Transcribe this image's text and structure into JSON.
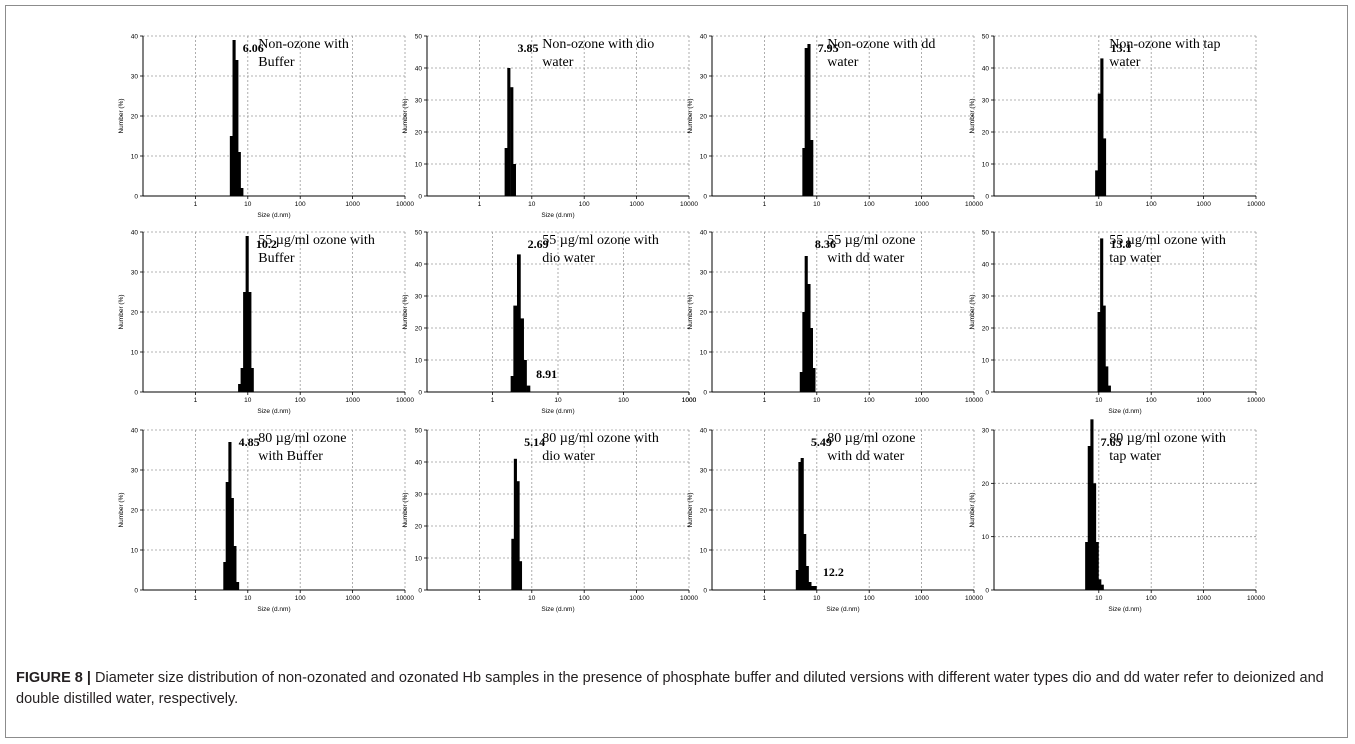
{
  "caption": {
    "label": "FIGURE 8 |",
    "text": " Diameter size distribution of non-ozonated and ozonated Hb samples in the presence of phosphate buffer and diluted versions with different water types dio and dd water refer to deionized and double distilled water, respectively."
  },
  "chart_data": [
    {
      "type": "bar",
      "title": [
        "Non-ozone with",
        "Buffer"
      ],
      "peak_label": "6.06",
      "secondary_label": "",
      "ylabel": "Number (%)",
      "xlabel": "Size (d.nm)",
      "x_scale": "log",
      "xlim": [
        0.1,
        10000
      ],
      "ylim": [
        0,
        40
      ],
      "yticks": [
        0,
        10,
        20,
        30,
        40
      ],
      "xticks": [
        "1",
        "10",
        "100",
        "1000",
        "10000"
      ],
      "grid": true,
      "bins": [
        [
          4.8,
          15
        ],
        [
          5.4,
          39
        ],
        [
          6.1,
          34
        ],
        [
          6.8,
          11
        ],
        [
          7.6,
          2
        ]
      ]
    },
    {
      "type": "bar",
      "title": [
        "Non-ozone with dio",
        "water"
      ],
      "peak_label": "3.85",
      "secondary_label": "",
      "ylabel": "Number (%)",
      "xlabel": "Size (d.nm)",
      "x_scale": "log",
      "xlim": [
        0.1,
        10000
      ],
      "ylim": [
        0,
        50
      ],
      "yticks": [
        0,
        10,
        20,
        30,
        40,
        50
      ],
      "xticks": [
        "1",
        "10",
        "100",
        "1000",
        "10000"
      ],
      "grid": true,
      "bins": [
        [
          3.2,
          15
        ],
        [
          3.6,
          40
        ],
        [
          4.1,
          34
        ],
        [
          4.6,
          10
        ]
      ]
    },
    {
      "type": "bar",
      "title": [
        "Non-ozone with dd",
        "water"
      ],
      "peak_label": "7.95",
      "secondary_label": "",
      "ylabel": "Number (%)",
      "xlabel": "",
      "x_scale": "log",
      "xlim": [
        0.1,
        10000
      ],
      "ylim": [
        0,
        40
      ],
      "yticks": [
        0,
        10,
        20,
        30,
        40
      ],
      "xticks": [
        "1",
        "10",
        "100",
        "1000",
        "10000"
      ],
      "grid": true,
      "bins": [
        [
          5.6,
          12
        ],
        [
          6.2,
          37
        ],
        [
          7.0,
          38
        ],
        [
          7.9,
          14
        ]
      ]
    },
    {
      "type": "bar",
      "title": [
        "Non-ozone with tap",
        "water"
      ],
      "peak_label": "13.1",
      "secondary_label": "",
      "ylabel": "Number (%)",
      "xlabel": "",
      "x_scale": "log",
      "xlim": [
        0.1,
        10000
      ],
      "ylim": [
        0,
        50
      ],
      "yticks": [
        0,
        10,
        20,
        30,
        40,
        50
      ],
      "xticks": [
        "10",
        "100",
        "1000",
        "10000"
      ],
      "grid": true,
      "bins": [
        [
          9.0,
          8
        ],
        [
          10.1,
          32
        ],
        [
          11.3,
          43
        ],
        [
          12.7,
          18
        ]
      ]
    },
    {
      "type": "bar",
      "title": [
        "55 µg/ml ozone with",
        "Buffer"
      ],
      "peak_label": "10.2",
      "secondary_label": "",
      "ylabel": "Number (%)",
      "xlabel": "Size (d.nm)",
      "x_scale": "log",
      "xlim": [
        0.1,
        10000
      ],
      "ylim": [
        0,
        40
      ],
      "yticks": [
        0,
        10,
        20,
        30,
        40
      ],
      "xticks": [
        "1",
        "10",
        "100",
        "1000",
        "10000"
      ],
      "grid": true,
      "bins": [
        [
          6.9,
          2
        ],
        [
          7.7,
          6
        ],
        [
          8.6,
          25
        ],
        [
          9.6,
          39
        ],
        [
          10.8,
          25
        ],
        [
          12.0,
          6
        ]
      ]
    },
    {
      "type": "bar",
      "title": [
        "55 µg/ml ozone with",
        "dio water"
      ],
      "peak_label": "2.69",
      "secondary_label": "8.91",
      "ylabel": "Number (%)",
      "xlabel": "Size (d.nm)",
      "x_scale": "log",
      "xlim": [
        0.1,
        1000
      ],
      "ylim": [
        0,
        50
      ],
      "yticks": [
        0,
        10,
        20,
        30,
        40,
        50
      ],
      "xticks": [
        "1",
        "10",
        "100",
        "1000",
        "1000"
      ],
      "grid": true,
      "bins": [
        [
          2.0,
          5
        ],
        [
          2.2,
          27
        ],
        [
          2.5,
          43
        ],
        [
          2.8,
          23
        ],
        [
          3.1,
          10
        ],
        [
          3.5,
          2
        ]
      ]
    },
    {
      "type": "bar",
      "title": [
        "55 µg/ml ozone",
        "with dd water"
      ],
      "peak_label": "8.36",
      "secondary_label": "",
      "ylabel": "Number (%)",
      "xlabel": "",
      "x_scale": "log",
      "xlim": [
        0.1,
        10000
      ],
      "ylim": [
        0,
        40
      ],
      "yticks": [
        0,
        10,
        20,
        30,
        40
      ],
      "xticks": [
        "1",
        "10",
        "100",
        "1000",
        "10000"
      ],
      "grid": true,
      "bins": [
        [
          5.0,
          5
        ],
        [
          5.6,
          20
        ],
        [
          6.2,
          34
        ],
        [
          7.0,
          27
        ],
        [
          7.8,
          16
        ],
        [
          8.7,
          6
        ]
      ]
    },
    {
      "type": "bar",
      "title": [
        "55 µg/ml ozone with",
        "tap water"
      ],
      "peak_label": "13.8",
      "secondary_label": "",
      "ylabel": "Number (%)",
      "xlabel": "Size (d.nm)",
      "x_scale": "log",
      "xlim": [
        0.1,
        10000
      ],
      "ylim": [
        0,
        50
      ],
      "yticks": [
        0,
        10,
        20,
        30,
        40,
        50
      ],
      "xticks": [
        "10",
        "100",
        "1000",
        "10000"
      ],
      "grid": true,
      "bins": [
        [
          10.0,
          25
        ],
        [
          11.2,
          48
        ],
        [
          12.5,
          27
        ],
        [
          14.0,
          8
        ],
        [
          15.7,
          2
        ]
      ]
    },
    {
      "type": "bar",
      "title": [
        "80 µg/ml ozone",
        "with Buffer"
      ],
      "peak_label": "4.85",
      "secondary_label": "",
      "ylabel": "Number (%)",
      "xlabel": "Size (d.nm)",
      "x_scale": "log",
      "xlim": [
        0.1,
        10000
      ],
      "ylim": [
        0,
        40
      ],
      "yticks": [
        0,
        10,
        20,
        30,
        40
      ],
      "xticks": [
        "1",
        "10",
        "100",
        "1000",
        "10000"
      ],
      "grid": true,
      "bins": [
        [
          3.6,
          7
        ],
        [
          4.0,
          27
        ],
        [
          4.5,
          37
        ],
        [
          5.0,
          23
        ],
        [
          5.6,
          11
        ],
        [
          6.3,
          2
        ]
      ]
    },
    {
      "type": "bar",
      "title": [
        "80 µg/ml ozone with",
        "dio water"
      ],
      "peak_label": "5.14",
      "secondary_label": "",
      "ylabel": "Number (%)",
      "xlabel": "Size (d.nm)",
      "x_scale": "log",
      "xlim": [
        0.1,
        10000
      ],
      "ylim": [
        0,
        50
      ],
      "yticks": [
        0,
        10,
        20,
        30,
        40,
        50
      ],
      "xticks": [
        "1",
        "10",
        "100",
        "1000",
        "10000"
      ],
      "grid": true,
      "bins": [
        [
          4.3,
          16
        ],
        [
          4.8,
          41
        ],
        [
          5.4,
          34
        ],
        [
          6.0,
          9
        ]
      ]
    },
    {
      "type": "bar",
      "title": [
        "80 µg/ml ozone",
        "with dd water"
      ],
      "peak_label": "5.49",
      "secondary_label": "12.2",
      "ylabel": "Number (%)",
      "xlabel": "Size (d.nm)",
      "x_scale": "log",
      "xlim": [
        0.1,
        10000
      ],
      "ylim": [
        0,
        40
      ],
      "yticks": [
        0,
        10,
        20,
        30,
        40
      ],
      "xticks": [
        "1",
        "10",
        "100",
        "1000",
        "10000"
      ],
      "grid": true,
      "bins": [
        [
          4.2,
          5
        ],
        [
          4.7,
          32
        ],
        [
          5.2,
          33
        ],
        [
          5.8,
          14
        ],
        [
          6.5,
          6
        ],
        [
          7.3,
          2
        ],
        [
          8.2,
          1
        ],
        [
          9.2,
          1
        ]
      ]
    },
    {
      "type": "bar",
      "title": [
        "80 µg/ml ozone with",
        "tap water"
      ],
      "peak_label": "7.65",
      "secondary_label": "",
      "ylabel": "Number (%)",
      "xlabel": "Size (d.nm)",
      "x_scale": "log",
      "xlim": [
        0.1,
        10000
      ],
      "ylim": [
        0,
        30
      ],
      "yticks": [
        0,
        10,
        20,
        30
      ],
      "xticks": [
        "10",
        "100",
        "1000",
        "10000"
      ],
      "grid": true,
      "bins": [
        [
          5.8,
          9
        ],
        [
          6.5,
          27
        ],
        [
          7.3,
          32
        ],
        [
          8.2,
          20
        ],
        [
          9.2,
          9
        ],
        [
          10.3,
          2
        ],
        [
          11.5,
          1
        ]
      ]
    }
  ]
}
